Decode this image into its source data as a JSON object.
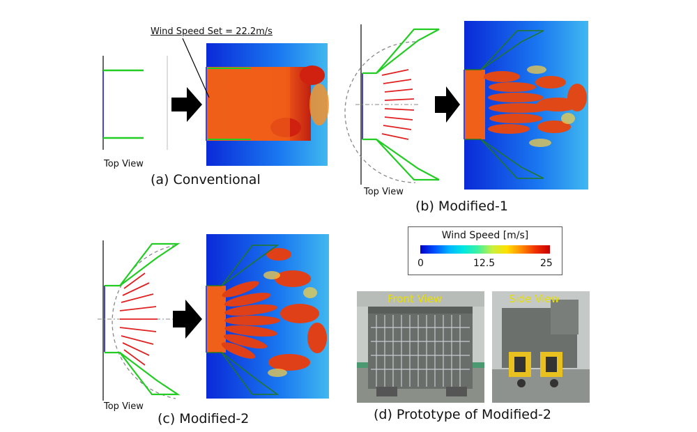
{
  "panels": {
    "a": {
      "caption": "(a) Conventional",
      "top_view": "Top View",
      "annotation": "Wind Speed Set = 22.2m/s"
    },
    "b": {
      "caption": "(b) Modified-1",
      "top_view": "Top View"
    },
    "c": {
      "caption": "(c) Modified-2",
      "top_view": "Top View"
    },
    "d": {
      "caption": "(d) Prototype of Modified-2",
      "front_label": "Front View",
      "side_label": "Side View"
    }
  },
  "legend": {
    "title": "Wind Speed [m/s]",
    "ticks": [
      "0",
      "12.5",
      "25"
    ],
    "min": 0,
    "max": 25
  },
  "colors": {
    "duct_line": "#22cc22",
    "vane_line": "#e02020",
    "inlet_line": "#4444dd",
    "arrow": "#000000",
    "background_flow": "#1040e0",
    "jet_core": "#f06018"
  }
}
